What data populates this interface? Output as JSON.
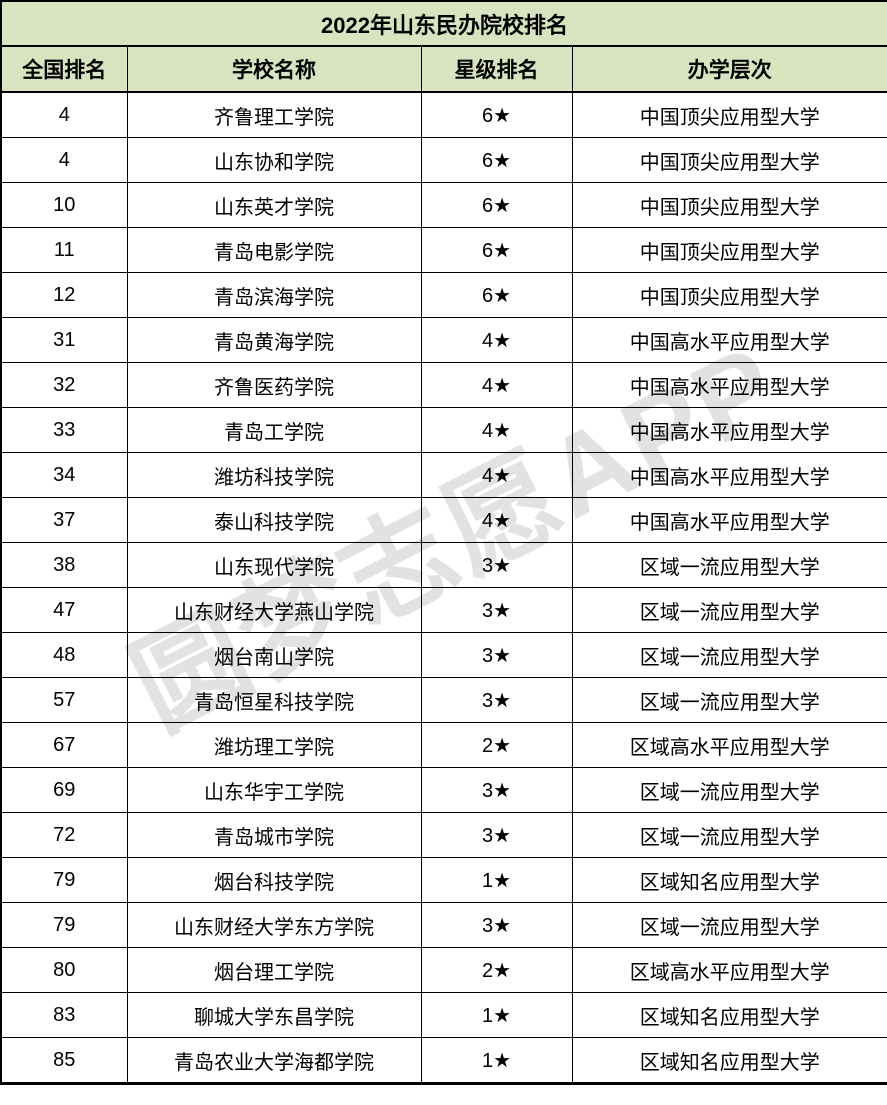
{
  "chart_data": {
    "type": "table",
    "title": "2022年山东民办院校排名",
    "columns": [
      "全国排名",
      "学校名称",
      "星级排名",
      "办学层次"
    ],
    "rows": [
      {
        "rank": "4",
        "school": "齐鲁理工学院",
        "stars": "6★",
        "level": "中国顶尖应用型大学"
      },
      {
        "rank": "4",
        "school": "山东协和学院",
        "stars": "6★",
        "level": "中国顶尖应用型大学"
      },
      {
        "rank": "10",
        "school": "山东英才学院",
        "stars": "6★",
        "level": "中国顶尖应用型大学"
      },
      {
        "rank": "11",
        "school": "青岛电影学院",
        "stars": "6★",
        "level": "中国顶尖应用型大学"
      },
      {
        "rank": "12",
        "school": "青岛滨海学院",
        "stars": "6★",
        "level": "中国顶尖应用型大学"
      },
      {
        "rank": "31",
        "school": "青岛黄海学院",
        "stars": "4★",
        "level": "中国高水平应用型大学"
      },
      {
        "rank": "32",
        "school": "齐鲁医药学院",
        "stars": "4★",
        "level": "中国高水平应用型大学"
      },
      {
        "rank": "33",
        "school": "青岛工学院",
        "stars": "4★",
        "level": "中国高水平应用型大学"
      },
      {
        "rank": "34",
        "school": "潍坊科技学院",
        "stars": "4★",
        "level": "中国高水平应用型大学"
      },
      {
        "rank": "37",
        "school": "泰山科技学院",
        "stars": "4★",
        "level": "中国高水平应用型大学"
      },
      {
        "rank": "38",
        "school": "山东现代学院",
        "stars": "3★",
        "level": "区域一流应用型大学"
      },
      {
        "rank": "47",
        "school": "山东财经大学燕山学院",
        "stars": "3★",
        "level": "区域一流应用型大学"
      },
      {
        "rank": "48",
        "school": "烟台南山学院",
        "stars": "3★",
        "level": "区域一流应用型大学"
      },
      {
        "rank": "57",
        "school": "青岛恒星科技学院",
        "stars": "3★",
        "level": "区域一流应用型大学"
      },
      {
        "rank": "67",
        "school": "潍坊理工学院",
        "stars": "2★",
        "level": "区域高水平应用型大学"
      },
      {
        "rank": "69",
        "school": "山东华宇工学院",
        "stars": "3★",
        "level": "区域一流应用型大学"
      },
      {
        "rank": "72",
        "school": "青岛城市学院",
        "stars": "3★",
        "level": "区域一流应用型大学"
      },
      {
        "rank": "79",
        "school": "烟台科技学院",
        "stars": "1★",
        "level": "区域知名应用型大学"
      },
      {
        "rank": "79",
        "school": "山东财经大学东方学院",
        "stars": "3★",
        "level": "区域一流应用型大学"
      },
      {
        "rank": "80",
        "school": "烟台理工学院",
        "stars": "2★",
        "level": "区域高水平应用型大学"
      },
      {
        "rank": "83",
        "school": "聊城大学东昌学院",
        "stars": "1★",
        "level": "区域知名应用型大学"
      },
      {
        "rank": "85",
        "school": "青岛农业大学海都学院",
        "stars": "1★",
        "level": "区域知名应用型大学"
      }
    ]
  },
  "watermark": {
    "text": "圆梦志愿APP"
  },
  "colors": {
    "header_bg": "#d8e3c0",
    "border": "#000000",
    "text": "#000000",
    "watermark": "#e2e2e2",
    "cell_bg": "#ffffff"
  }
}
